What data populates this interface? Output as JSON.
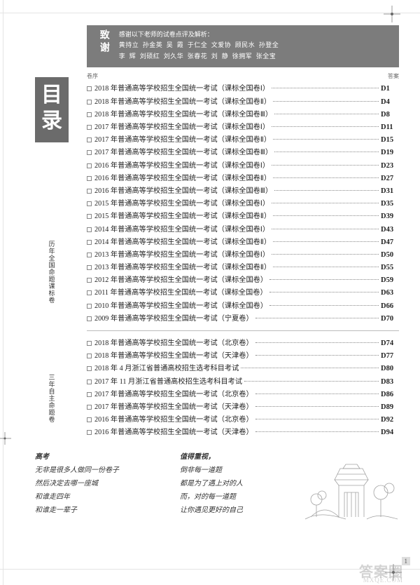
{
  "thanks": {
    "label": "致谢",
    "intro": "感谢以下老师的试卷点评及解析：",
    "line1": "黄持立  孙金英  吴  霞  于仁全  文爱协  顾民水  孙登全",
    "line2": "李  辉  刘硕红  刘久华  张春花  刘  静  徐拥军  张全宝"
  },
  "tocTitle": [
    "目",
    "录"
  ],
  "hdr": {
    "left": "卷序",
    "right": "答案"
  },
  "section1": {
    "label": "历年全国命题课标卷",
    "rows": [
      {
        "t": "2018 年普通高等学校招生全国统一考试（课标全国卷Ⅰ）",
        "p": "D1"
      },
      {
        "t": "2018 年普通高等学校招生全国统一考试（课标全国卷Ⅱ）",
        "p": "D4"
      },
      {
        "t": "2018 年普通高等学校招生全国统一考试（课标全国卷Ⅲ）",
        "p": "D8"
      },
      {
        "t": "2017 年普通高等学校招生全国统一考试（课标全国卷Ⅰ）",
        "p": "D11"
      },
      {
        "t": "2017 年普通高等学校招生全国统一考试（课标全国卷Ⅱ）",
        "p": "D15"
      },
      {
        "t": "2017 年普通高等学校招生全国统一考试（课标全国卷Ⅲ）",
        "p": "D19"
      },
      {
        "t": "2016 年普通高等学校招生全国统一考试（课标全国卷Ⅰ）",
        "p": "D23"
      },
      {
        "t": "2016 年普通高等学校招生全国统一考试（课标全国卷Ⅱ）",
        "p": "D27"
      },
      {
        "t": "2016 年普通高等学校招生全国统一考试（课标全国卷Ⅲ）",
        "p": "D31"
      },
      {
        "t": "2015 年普通高等学校招生全国统一考试（课标全国卷Ⅰ）",
        "p": "D35"
      },
      {
        "t": "2015 年普通高等学校招生全国统一考试（课标全国卷Ⅱ）",
        "p": "D39"
      },
      {
        "t": "2014 年普通高等学校招生全国统一考试（课标全国卷Ⅰ）",
        "p": "D43"
      },
      {
        "t": "2014 年普通高等学校招生全国统一考试（课标全国卷Ⅱ）",
        "p": "D47"
      },
      {
        "t": "2013 年普通高等学校招生全国统一考试（课标全国卷Ⅰ）",
        "p": "D50"
      },
      {
        "t": "2013 年普通高等学校招生全国统一考试（课标全国卷Ⅱ）",
        "p": "D55"
      },
      {
        "t": "2012 年普通高等学校招生全国统一考试（课标全国卷）",
        "p": "D59"
      },
      {
        "t": "2011 年普通高等学校招生全国统一考试（课标全国卷）",
        "p": "D63"
      },
      {
        "t": "2010 年普通高等学校招生全国统一考试（课标全国卷）",
        "p": "D66"
      },
      {
        "t": "2009 年普通高等学校招生全国统一考试（宁夏卷）",
        "p": "D70"
      }
    ]
  },
  "section2": {
    "label": "三年自主命题卷",
    "rows": [
      {
        "t": "2018 年普通高等学校招生全国统一考试（北京卷）",
        "p": "D74"
      },
      {
        "t": "2018 年普通高等学校招生全国统一考试（天津卷）",
        "p": "D77"
      },
      {
        "t": "2018 年 4 月浙江省普通高校招生选考科目考试",
        "p": "D80"
      },
      {
        "t": "2017 年 11 月浙江省普通高校招生选考科目考试",
        "p": "D83"
      },
      {
        "t": "2017 年普通高等学校招生全国统一考试（北京卷）",
        "p": "D86"
      },
      {
        "t": "2017 年普通高等学校招生全国统一考试（天津卷）",
        "p": "D89"
      },
      {
        "t": "2016 年普通高等学校招生全国统一考试（北京卷）",
        "p": "D92"
      },
      {
        "t": "2016 年普通高等学校招生全国统一考试（天津卷）",
        "p": "D94"
      }
    ]
  },
  "poemLeft": [
    "高考",
    "无非是很多人做同一份卷子",
    "然后决定去哪一座城",
    "和谁走四年",
    "和谁走一辈子"
  ],
  "poemRight": [
    "值得重视，",
    "倒非每一道题",
    "都是为了遇上对的人",
    "而，对的每一道题",
    "让你遇见更好的自己"
  ],
  "watermark": "答案圈",
  "watermarkSub": "MXQE.COM",
  "pageNum": "1"
}
